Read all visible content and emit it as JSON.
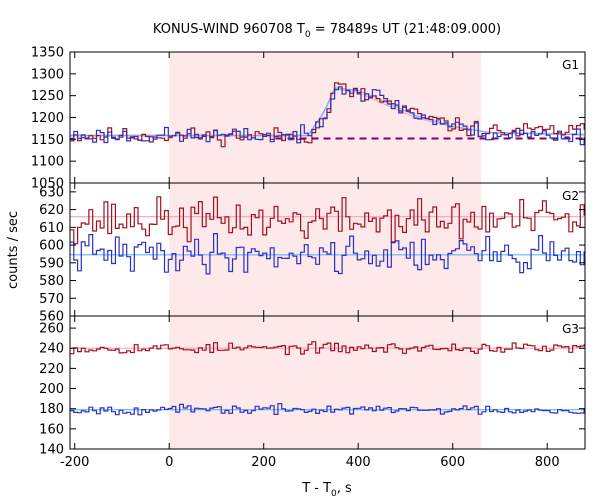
{
  "chart_data": {
    "type": "line",
    "title": {
      "prefix": "KONUS-WIND 960708 T",
      "sub": "0",
      "suffix": " = 78489s UT (21:48:09.000)"
    },
    "xlabel": {
      "prefix": "T - T",
      "sub": "0",
      "suffix": ", s"
    },
    "ylabel": "counts / sec",
    "xlim": [
      -210,
      880
    ],
    "x_ticks": [
      -200,
      0,
      200,
      400,
      600,
      800
    ],
    "x_tick_labels": [
      "-200",
      "0",
      "200",
      "400",
      "600",
      "800"
    ],
    "shaded_interval": [
      0,
      660
    ],
    "colors": {
      "series_a": "#a0111f",
      "series_b": "#2a30c0",
      "model_a": "#ff9fb8",
      "model_b": "#60b4ff",
      "background_fit": "#800060",
      "shade": "#fde8ea"
    },
    "panels": [
      {
        "label": "G1",
        "ylim": [
          1050,
          1350
        ],
        "y_ticks": [
          1050,
          1100,
          1150,
          1200,
          1250,
          1300,
          1350
        ],
        "y_tick_labels": [
          "1050",
          "1100",
          "1150",
          "1200",
          "1250",
          "1300",
          "1350"
        ],
        "background_fit": {
          "x_start": 225,
          "x_end": 880,
          "y": 1152
        },
        "series": [
          {
            "base": 1158,
            "noise": 14,
            "seed": 11,
            "pulse": [
              [
                300,
                1170
              ],
              [
                330,
                1200
              ],
              [
                345,
                1275
              ],
              [
                380,
                1258
              ],
              [
                440,
                1242
              ],
              [
                520,
                1205
              ],
              [
                600,
                1180
              ],
              [
                680,
                1168
              ],
              [
                880,
                1170
              ]
            ]
          },
          {
            "base": 1158,
            "noise": 14,
            "seed": 23,
            "pulse": [
              [
                300,
                1168
              ],
              [
                330,
                1210
              ],
              [
                345,
                1280
              ],
              [
                380,
                1262
              ],
              [
                440,
                1248
              ],
              [
                520,
                1205
              ],
              [
                600,
                1180
              ],
              [
                680,
                1162
              ],
              [
                880,
                1158
              ]
            ]
          }
        ],
        "models": [
          {
            "base": 1160,
            "pulse": [
              [
                300,
                1170
              ],
              [
                330,
                1215
              ],
              [
                350,
                1265
              ],
              [
                400,
                1258
              ],
              [
                440,
                1238
              ],
              [
                520,
                1200
              ],
              [
                600,
                1178
              ],
              [
                680,
                1166
              ],
              [
                880,
                1162
              ]
            ]
          },
          {
            "base": 1158,
            "pulse": [
              [
                300,
                1168
              ],
              [
                330,
                1218
              ],
              [
                350,
                1268
              ],
              [
                400,
                1262
              ],
              [
                440,
                1245
              ],
              [
                520,
                1205
              ],
              [
                600,
                1180
              ],
              [
                680,
                1165
              ],
              [
                880,
                1160
              ]
            ]
          }
        ]
      },
      {
        "label": "G2",
        "ylim": [
          560,
          635
        ],
        "y_ticks": [
          560,
          570,
          580,
          590,
          600,
          610,
          620,
          630
        ],
        "y_tick_labels": [
          "560",
          "570",
          "580",
          "590",
          "600",
          "610",
          "620",
          "630"
        ],
        "series": [
          {
            "base": 614,
            "noise": 9,
            "seed": 37
          },
          {
            "base": 595,
            "noise": 8,
            "seed": 41
          }
        ],
        "models": [
          {
            "base": 616
          },
          {
            "base": 594.5
          }
        ]
      },
      {
        "label": "G3",
        "ylim": [
          140,
          272
        ],
        "y_ticks": [
          140,
          160,
          180,
          200,
          220,
          240,
          260
        ],
        "y_tick_labels": [
          "140",
          "160",
          "180",
          "200",
          "220",
          "240",
          "260"
        ],
        "series": [
          {
            "base": 240,
            "noise": 4,
            "seed": 53
          },
          {
            "base": 179,
            "noise": 3.5,
            "seed": 67
          }
        ],
        "models": [
          {
            "base": 240
          },
          {
            "base": 179
          }
        ]
      }
    ]
  }
}
